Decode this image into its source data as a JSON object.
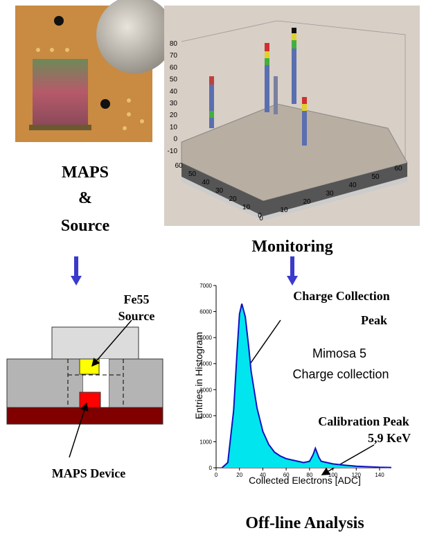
{
  "photo": {
    "caption": [
      "MAPS",
      "&",
      "Source"
    ]
  },
  "monitoring": {
    "title": "Monitoring",
    "z_ticks": [
      80,
      70,
      60,
      50,
      40,
      30,
      20,
      10,
      0,
      -10
    ],
    "depth_ticks": [
      60,
      50,
      40,
      30,
      20,
      10,
      0
    ],
    "front_ticks": [
      0,
      10,
      20,
      30,
      40,
      50,
      60
    ]
  },
  "schematic": {
    "source_label": [
      "Fe55",
      "Source"
    ],
    "device_label": "MAPS Device"
  },
  "histogram": {
    "type": "area",
    "title": "Off-line Analysis",
    "legend": [
      "Mimosa 5",
      "Charge collection"
    ],
    "xlabel": "Collected Electrons [ADC]",
    "ylabel": "Entries in Histogram",
    "x": [
      5,
      10,
      15,
      18,
      20,
      22,
      25,
      28,
      30,
      35,
      40,
      45,
      50,
      55,
      60,
      65,
      70,
      75,
      80,
      83,
      85,
      88,
      90,
      95,
      100,
      110,
      120,
      130,
      140,
      150
    ],
    "values": [
      0,
      200,
      2200,
      4500,
      5900,
      6300,
      5800,
      4600,
      3700,
      2300,
      1400,
      900,
      600,
      450,
      350,
      300,
      250,
      200,
      250,
      500,
      750,
      400,
      250,
      200,
      150,
      100,
      60,
      40,
      20,
      10
    ],
    "xlim": [
      0,
      150
    ],
    "ylim": [
      0,
      7000
    ],
    "xticks": [
      0,
      20,
      40,
      60,
      80,
      100,
      120,
      140
    ],
    "yticks": [
      0,
      1000,
      2000,
      3000,
      4000,
      5000,
      6000,
      7000
    ],
    "fill": "#00e5ee",
    "line": "#1010c0",
    "annotations": {
      "peak": [
        "Charge Collection",
        "Peak"
      ],
      "calibration": [
        "Calibration Peak",
        "5,9 KeV"
      ]
    }
  }
}
